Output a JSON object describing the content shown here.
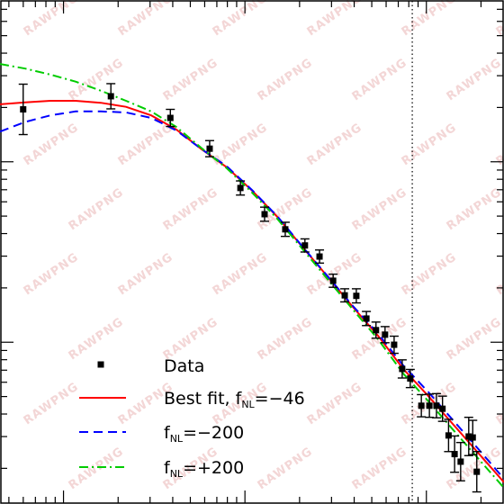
{
  "chart_data": {
    "type": "scatter",
    "title": "",
    "xlabel": "",
    "ylabel": "",
    "x_range": [
      0,
      1
    ],
    "y_range": [
      0,
      1
    ],
    "x_scale": "log",
    "y_scale": "log",
    "vline": {
      "x": 0.818,
      "style": "dotted"
    },
    "legend_position": "bottom-left",
    "legend": [
      {
        "label": "Data",
        "kind": "marker",
        "color": "#000000"
      },
      {
        "label": "Best fit, f",
        "sub": "NL",
        "suffix": "=−46",
        "kind": "solid",
        "color": "#ff0000"
      },
      {
        "label": "f",
        "sub": "NL",
        "suffix": "=−200",
        "kind": "dashed",
        "color": "#0000ff"
      },
      {
        "label": "f",
        "sub": "NL",
        "suffix": "=+200",
        "kind": "dashdot",
        "color": "#00cc00"
      }
    ],
    "points": [
      {
        "x": 0.046,
        "y": 0.783,
        "err": 0.05
      },
      {
        "x": 0.22,
        "y": 0.809,
        "err": 0.025
      },
      {
        "x": 0.338,
        "y": 0.766,
        "err": 0.017
      },
      {
        "x": 0.416,
        "y": 0.705,
        "err": 0.016
      },
      {
        "x": 0.477,
        "y": 0.627,
        "err": 0.014
      },
      {
        "x": 0.525,
        "y": 0.575,
        "err": 0.014
      },
      {
        "x": 0.566,
        "y": 0.545,
        "err": 0.014
      },
      {
        "x": 0.605,
        "y": 0.513,
        "err": 0.013
      },
      {
        "x": 0.634,
        "y": 0.491,
        "err": 0.013
      },
      {
        "x": 0.661,
        "y": 0.443,
        "err": 0.013
      },
      {
        "x": 0.684,
        "y": 0.414,
        "err": 0.013
      },
      {
        "x": 0.707,
        "y": 0.413,
        "err": 0.014
      },
      {
        "x": 0.727,
        "y": 0.368,
        "err": 0.014
      },
      {
        "x": 0.746,
        "y": 0.345,
        "err": 0.016
      },
      {
        "x": 0.764,
        "y": 0.336,
        "err": 0.016
      },
      {
        "x": 0.782,
        "y": 0.316,
        "err": 0.017
      },
      {
        "x": 0.798,
        "y": 0.268,
        "err": 0.018
      },
      {
        "x": 0.814,
        "y": 0.249,
        "err": 0.018
      },
      {
        "x": 0.836,
        "y": 0.195,
        "err": 0.022
      },
      {
        "x": 0.852,
        "y": 0.195,
        "err": 0.023
      },
      {
        "x": 0.866,
        "y": 0.195,
        "err": 0.024
      },
      {
        "x": 0.878,
        "y": 0.189,
        "err": 0.025
      },
      {
        "x": 0.89,
        "y": 0.136,
        "err": 0.032
      },
      {
        "x": 0.902,
        "y": 0.099,
        "err": 0.036
      },
      {
        "x": 0.914,
        "y": 0.084,
        "err": 0.038
      },
      {
        "x": 0.93,
        "y": 0.134,
        "err": 0.038
      },
      {
        "x": 0.938,
        "y": 0.132,
        "err": 0.034
      },
      {
        "x": 0.946,
        "y": 0.064,
        "err": 0.04
      }
    ],
    "series": [
      {
        "style": "solid",
        "color": "#ff0000",
        "x": [
          0.0,
          0.05,
          0.1,
          0.15,
          0.2,
          0.25,
          0.3,
          0.35,
          0.4,
          0.45,
          0.5,
          0.55,
          0.6,
          0.65,
          0.7,
          0.75,
          0.8,
          0.85,
          0.9,
          0.95,
          1.0
        ],
        "y": [
          0.793,
          0.797,
          0.8,
          0.8,
          0.796,
          0.788,
          0.771,
          0.743,
          0.704,
          0.668,
          0.622,
          0.57,
          0.51,
          0.451,
          0.391,
          0.334,
          0.268,
          0.214,
          0.157,
          0.1,
          0.043
        ]
      },
      {
        "style": "dashed",
        "color": "#0000ff",
        "x": [
          0.0,
          0.05,
          0.1,
          0.15,
          0.2,
          0.25,
          0.3,
          0.35,
          0.4,
          0.45,
          0.5,
          0.55,
          0.6,
          0.65,
          0.7,
          0.75,
          0.8,
          0.85,
          0.9,
          0.95,
          1.0
        ],
        "y": [
          0.739,
          0.758,
          0.771,
          0.779,
          0.779,
          0.777,
          0.766,
          0.741,
          0.704,
          0.67,
          0.623,
          0.571,
          0.511,
          0.452,
          0.393,
          0.338,
          0.275,
          0.222,
          0.165,
          0.108,
          0.05
        ]
      },
      {
        "style": "dashdot",
        "color": "#00cc00",
        "x": [
          0.0,
          0.05,
          0.1,
          0.15,
          0.2,
          0.25,
          0.3,
          0.35,
          0.4,
          0.45,
          0.5,
          0.55,
          0.6,
          0.65,
          0.7,
          0.75,
          0.8,
          0.85,
          0.9,
          0.95,
          1.0
        ],
        "y": [
          0.873,
          0.864,
          0.852,
          0.838,
          0.82,
          0.8,
          0.779,
          0.748,
          0.706,
          0.666,
          0.618,
          0.566,
          0.506,
          0.446,
          0.386,
          0.327,
          0.259,
          0.204,
          0.146,
          0.089,
          0.032
        ]
      }
    ],
    "watermark": "RAWPNG"
  }
}
